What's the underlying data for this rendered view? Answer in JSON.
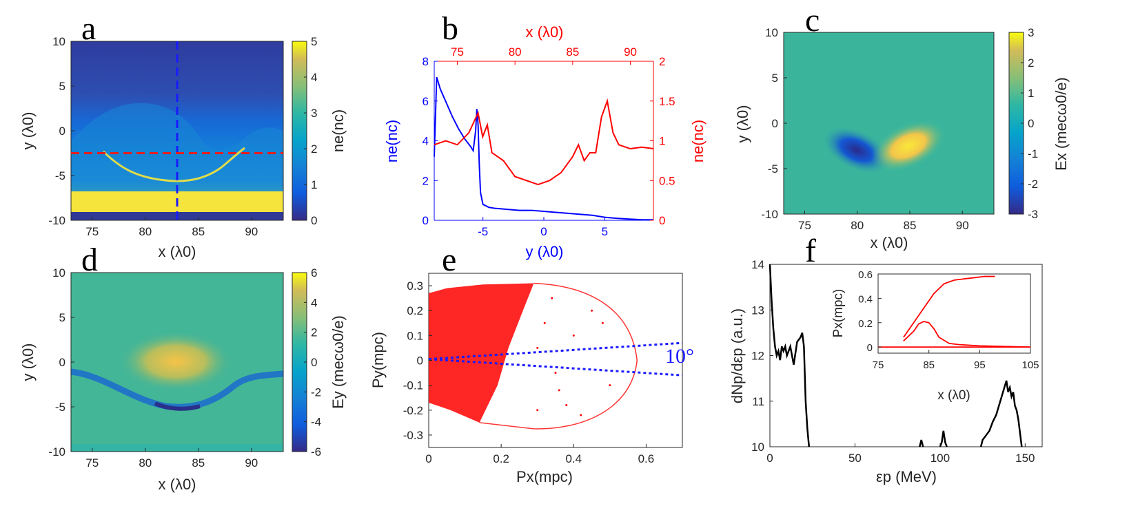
{
  "panel_letters": {
    "a": "a",
    "b": "b",
    "c": "c",
    "d": "d",
    "e": "e",
    "f": "f"
  },
  "chart_data": [
    {
      "id": "a",
      "type": "heatmap",
      "xlabel": "x (λ0)",
      "ylabel": "y (λ0)",
      "colorbar_label": "ne(nc)",
      "xlim": [
        73,
        93
      ],
      "ylim": [
        -10,
        10
      ],
      "clim": [
        0,
        5
      ],
      "xticks": [
        75,
        80,
        85,
        90
      ],
      "yticks": [
        -10,
        -5,
        0,
        5,
        10
      ],
      "cticks": [
        0,
        1,
        2,
        3,
        4,
        5
      ],
      "overlays": [
        {
          "name": "vertical cut",
          "x": 83,
          "color": "#1a1aff"
        },
        {
          "name": "horizontal cut",
          "y": -2.5,
          "color": "#e81c1c"
        }
      ]
    },
    {
      "id": "b",
      "type": "line",
      "bottom_xlabel": "y (λ0)",
      "top_xlabel": "x (λ0)",
      "left_ylabel": "ne(nc)",
      "right_ylabel": "ne(nc)",
      "bottom_xlim": [
        -9,
        9
      ],
      "bottom_xticks": [
        -5,
        0,
        5
      ],
      "top_xlim": [
        73,
        92
      ],
      "top_xticks": [
        75,
        80,
        85,
        90
      ],
      "left_ylim": [
        0,
        8
      ],
      "left_yticks": [
        0,
        2,
        4,
        6,
        8
      ],
      "right_ylim": [
        0,
        2
      ],
      "right_yticks": [
        0,
        0.5,
        1,
        1.5,
        2
      ],
      "right_yticklabels": [
        "0",
        "0.5",
        "1",
        "1.5",
        "2"
      ],
      "series": [
        {
          "name": "ne along y (blue, bottom/left axes)",
          "color": "#0000ff",
          "x": [
            -9,
            -8.8,
            -8.5,
            -8,
            -7.5,
            -7,
            -6.5,
            -6,
            -5.8,
            -5.6,
            -5.5,
            -5.4,
            -5.3,
            -5.2,
            -5,
            -4.5,
            -4,
            -3,
            -2,
            -1,
            0,
            1,
            2,
            3,
            4,
            5,
            6,
            7,
            8,
            9
          ],
          "y": [
            3.2,
            7.2,
            6.6,
            5.9,
            5.2,
            4.6,
            4.1,
            3.7,
            3.5,
            4.5,
            5.6,
            4.8,
            2.8,
            1.4,
            0.8,
            0.65,
            0.6,
            0.55,
            0.5,
            0.5,
            0.45,
            0.4,
            0.35,
            0.3,
            0.25,
            0.15,
            0.1,
            0.06,
            0.03,
            0.02
          ]
        },
        {
          "name": "ne along x (red, top/right axes)",
          "color": "#ff0000",
          "x": [
            73,
            74,
            75,
            76,
            76.8,
            77.2,
            77.6,
            78,
            79,
            80,
            81,
            82,
            83,
            84,
            85,
            85.5,
            86,
            86.5,
            87,
            87.5,
            88,
            88.5,
            89,
            90,
            91,
            92
          ],
          "y": [
            0.95,
            1.0,
            0.95,
            1.1,
            1.35,
            1.05,
            1.2,
            0.85,
            0.75,
            0.55,
            0.5,
            0.45,
            0.5,
            0.6,
            0.8,
            0.95,
            0.75,
            0.85,
            0.85,
            1.3,
            1.5,
            1.1,
            0.95,
            0.9,
            0.92,
            0.9
          ]
        }
      ]
    },
    {
      "id": "c",
      "type": "heatmap",
      "xlabel": "x (λ0)",
      "ylabel": "y (λ0)",
      "colorbar_label": "Ex (mecω0/e)",
      "xlim": [
        73,
        93
      ],
      "ylim": [
        -10,
        10
      ],
      "clim": [
        -3,
        3
      ],
      "xticks": [
        75,
        80,
        85,
        90
      ],
      "yticks": [
        -10,
        -5,
        0,
        5,
        10
      ],
      "cticks": [
        -3,
        -2,
        -1,
        0,
        1,
        2,
        3
      ]
    },
    {
      "id": "d",
      "type": "heatmap",
      "xlabel": "x (λ0)",
      "ylabel": "y (λ0)",
      "colorbar_label": "Ey (mecω0/e)",
      "xlim": [
        73,
        93
      ],
      "ylim": [
        -10,
        10
      ],
      "clim": [
        -6,
        6
      ],
      "xticks": [
        75,
        80,
        85,
        90
      ],
      "yticks": [
        -10,
        -5,
        0,
        5,
        10
      ],
      "cticks": [
        -6,
        -4,
        -2,
        0,
        2,
        4,
        6
      ]
    },
    {
      "id": "e",
      "type": "scatter",
      "xlabel": "Px(mpc)",
      "ylabel": "Py(mpc)",
      "xlim": [
        0,
        0.7
      ],
      "ylim": [
        -0.35,
        0.35
      ],
      "xticks": [
        0,
        0.2,
        0.4,
        0.6
      ],
      "xticklabels": [
        "0",
        "0.2",
        "0.4",
        "0.6"
      ],
      "yticks": [
        -0.3,
        -0.2,
        -0.1,
        0,
        0.1,
        0.2,
        0.3
      ],
      "yticklabels": [
        "-0.3",
        "-0.2",
        "-0.1",
        "0",
        "0.1",
        "0.2",
        "0.3"
      ],
      "color": "#ff0000",
      "annotation": "10°",
      "guide_lines": [
        {
          "from": [
            0,
            0.005
          ],
          "to": [
            0.7,
            0.07
          ],
          "color": "#1a1aff"
        },
        {
          "from": [
            0,
            0.005
          ],
          "to": [
            0.7,
            -0.06
          ],
          "color": "#1a1aff"
        }
      ]
    },
    {
      "id": "f",
      "type": "line",
      "xlabel": "εp (MeV)",
      "ylabel": "dNp/dεp (a.u.)",
      "xlim": [
        0,
        160
      ],
      "ylim": [
        10,
        14
      ],
      "xticks": [
        0,
        50,
        100,
        150
      ],
      "yticks": [
        10,
        11,
        12,
        13,
        14
      ],
      "series": [
        {
          "name": "spectrum (low energy)",
          "color": "#000000",
          "x": [
            0,
            1,
            2,
            3,
            4,
            5,
            6,
            7,
            8,
            9,
            10,
            12,
            14,
            16,
            18,
            19,
            20,
            21,
            22,
            23
          ],
          "y": [
            14,
            13.2,
            12.6,
            12.2,
            12.0,
            12.1,
            11.9,
            12.2,
            12.1,
            12.2,
            12.0,
            12.2,
            11.8,
            12.3,
            12.4,
            12.5,
            12.2,
            11.0,
            10.4,
            10
          ]
        },
        {
          "name": "spectrum peak 1",
          "color": "#000000",
          "x": [
            88,
            89,
            90
          ],
          "y": [
            10,
            10.15,
            10
          ]
        },
        {
          "name": "spectrum peak 2",
          "color": "#000000",
          "x": [
            100,
            101,
            102,
            103,
            104
          ],
          "y": [
            10,
            10.1,
            10.35,
            10.1,
            10
          ]
        },
        {
          "name": "spectrum high energy",
          "color": "#000000",
          "x": [
            124,
            125,
            127,
            129,
            131,
            133,
            135,
            137,
            139,
            140,
            141,
            142,
            143,
            144,
            145,
            146,
            147,
            148
          ],
          "y": [
            10,
            10.15,
            10.25,
            10.35,
            10.55,
            10.7,
            10.95,
            11.2,
            11.45,
            11.2,
            11.3,
            11.1,
            11.2,
            10.9,
            10.8,
            10.6,
            10.3,
            10
          ]
        }
      ],
      "inset": {
        "type": "scatter",
        "xlabel": "x (λ0)",
        "ylabel": "Px(mpc)",
        "xlim": [
          75,
          105
        ],
        "ylim": [
          -0.05,
          0.6
        ],
        "xticks": [
          75,
          85,
          95,
          105
        ],
        "yticks": [
          0,
          0.2,
          0.4,
          0.6
        ],
        "yticklabels": [
          "0",
          "0.2",
          "0.4",
          "0.6"
        ],
        "color": "#ff0000",
        "branches": [
          {
            "x": [
              80,
              82,
              84,
              86,
              88,
              90,
              92,
              94,
              96,
              98
            ],
            "y": [
              0.08,
              0.2,
              0.32,
              0.44,
              0.52,
              0.55,
              0.56,
              0.57,
              0.58,
              0.58
            ]
          },
          {
            "x": [
              80,
              82,
              83,
              84,
              85,
              86,
              87,
              89,
              91,
              95,
              100,
              105
            ],
            "y": [
              0.05,
              0.13,
              0.19,
              0.21,
              0.2,
              0.15,
              0.08,
              0.03,
              0.02,
              0.01,
              0.005,
              0
            ]
          },
          {
            "x": [
              75,
              80,
              85,
              90,
              95,
              100,
              105
            ],
            "y": [
              0,
              0,
              0,
              0,
              0,
              0,
              0
            ]
          }
        ]
      }
    }
  ]
}
